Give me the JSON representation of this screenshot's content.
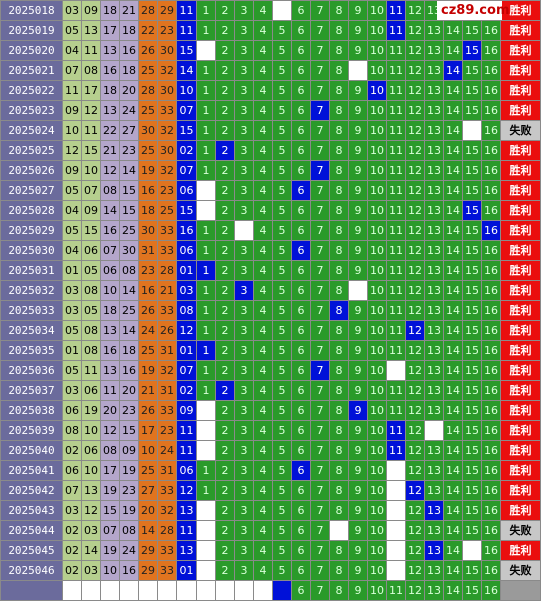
{
  "logo": {
    "text": "cz89.com"
  },
  "rows": [
    {
      "issue": "2025018",
      "nums": [
        "03",
        "09",
        "18",
        "21",
        "28",
        "29"
      ],
      "blue": "11",
      "res": "win"
    },
    {
      "issue": "2025019",
      "nums": [
        "05",
        "13",
        "17",
        "18",
        "22",
        "23"
      ],
      "blue": "11",
      "res": "win"
    },
    {
      "issue": "2025020",
      "nums": [
        "04",
        "11",
        "13",
        "16",
        "26",
        "30"
      ],
      "blue": "15",
      "res": "win"
    },
    {
      "issue": "2025021",
      "nums": [
        "07",
        "08",
        "16",
        "18",
        "25",
        "32"
      ],
      "blue": "14",
      "res": "win"
    },
    {
      "issue": "2025022",
      "nums": [
        "11",
        "17",
        "18",
        "20",
        "28",
        "30"
      ],
      "blue": "10",
      "res": "win"
    },
    {
      "issue": "2025023",
      "nums": [
        "09",
        "12",
        "13",
        "24",
        "25",
        "33"
      ],
      "blue": "07",
      "res": "win"
    },
    {
      "issue": "2025024",
      "nums": [
        "10",
        "11",
        "22",
        "27",
        "30",
        "32"
      ],
      "blue": "15",
      "res": "lose"
    },
    {
      "issue": "2025025",
      "nums": [
        "12",
        "15",
        "21",
        "23",
        "25",
        "30"
      ],
      "blue": "02",
      "res": "win"
    },
    {
      "issue": "2025026",
      "nums": [
        "09",
        "10",
        "12",
        "14",
        "19",
        "32"
      ],
      "blue": "07",
      "res": "win"
    },
    {
      "issue": "2025027",
      "nums": [
        "05",
        "07",
        "08",
        "15",
        "16",
        "23"
      ],
      "blue": "06",
      "res": "win"
    },
    {
      "issue": "2025028",
      "nums": [
        "04",
        "09",
        "14",
        "15",
        "18",
        "25"
      ],
      "blue": "15",
      "res": "win"
    },
    {
      "issue": "2025029",
      "nums": [
        "05",
        "15",
        "16",
        "25",
        "30",
        "33"
      ],
      "blue": "16",
      "res": "win"
    },
    {
      "issue": "2025030",
      "nums": [
        "04",
        "06",
        "07",
        "30",
        "31",
        "33"
      ],
      "blue": "06",
      "res": "win"
    },
    {
      "issue": "2025031",
      "nums": [
        "01",
        "05",
        "06",
        "08",
        "23",
        "28"
      ],
      "blue": "01",
      "res": "win"
    },
    {
      "issue": "2025032",
      "nums": [
        "03",
        "08",
        "10",
        "14",
        "16",
        "21"
      ],
      "blue": "03",
      "res": "win"
    },
    {
      "issue": "2025033",
      "nums": [
        "03",
        "05",
        "18",
        "25",
        "26",
        "33"
      ],
      "blue": "08",
      "res": "win"
    },
    {
      "issue": "2025034",
      "nums": [
        "05",
        "08",
        "13",
        "14",
        "24",
        "26"
      ],
      "blue": "12",
      "res": "win"
    },
    {
      "issue": "2025035",
      "nums": [
        "01",
        "08",
        "16",
        "18",
        "25",
        "31"
      ],
      "blue": "01",
      "res": "win"
    },
    {
      "issue": "2025036",
      "nums": [
        "05",
        "11",
        "13",
        "16",
        "19",
        "32"
      ],
      "blue": "07",
      "res": "win"
    },
    {
      "issue": "2025037",
      "nums": [
        "03",
        "06",
        "11",
        "20",
        "21",
        "31"
      ],
      "blue": "02",
      "res": "win"
    },
    {
      "issue": "2025038",
      "nums": [
        "06",
        "19",
        "20",
        "23",
        "26",
        "33"
      ],
      "blue": "09",
      "res": "win"
    },
    {
      "issue": "2025039",
      "nums": [
        "08",
        "10",
        "12",
        "15",
        "17",
        "23"
      ],
      "blue": "11",
      "res": "win"
    },
    {
      "issue": "2025040",
      "nums": [
        "02",
        "06",
        "08",
        "09",
        "10",
        "24"
      ],
      "blue": "11",
      "res": "win"
    },
    {
      "issue": "2025041",
      "nums": [
        "06",
        "10",
        "17",
        "19",
        "25",
        "31"
      ],
      "blue": "06",
      "res": "win"
    },
    {
      "issue": "2025042",
      "nums": [
        "07",
        "13",
        "19",
        "23",
        "27",
        "33"
      ],
      "blue": "12",
      "res": "win"
    },
    {
      "issue": "2025043",
      "nums": [
        "03",
        "12",
        "15",
        "19",
        "20",
        "32"
      ],
      "blue": "13",
      "res": "win"
    },
    {
      "issue": "2025044",
      "nums": [
        "02",
        "03",
        "07",
        "08",
        "14",
        "28"
      ],
      "blue": "11",
      "res": "lose"
    },
    {
      "issue": "2025045",
      "nums": [
        "02",
        "14",
        "19",
        "24",
        "29",
        "33"
      ],
      "blue": "13",
      "res": "win"
    },
    {
      "issue": "2025046",
      "nums": [
        "02",
        "03",
        "10",
        "16",
        "29",
        "33"
      ],
      "blue": "01",
      "res": "lose"
    }
  ],
  "grid": [
    "GGGGWGGGGGBGGGGG",
    "GGGGGGGGGGBGGGGG",
    "WGGGGGGGGGGGGGBG",
    "GGGGGGGGWGGGGBGG",
    "GGGGGGGGGBGGGGGG",
    "GGGGGGBGGGGGGGGG",
    "GGGGGGGGGGGGGGWG",
    "GBGGGGGGGGGGGGGG",
    "GGGGGGBGGGGGGGGG",
    "WGGGGBGGGGGGGGGG",
    "WGGGGGGGGGGGGGBG",
    "GGWGGGGGGGGGGGGB",
    "GGGGGBGGGGGGGGGG",
    "BGGGGGGGGGGGGGGG",
    "GGBGGGGGWGGGGGGG",
    "GGGGGGGBGGGGGGGG",
    "GGGGGGGGGGGBGGGG",
    "BGGGGGGGGGGGGGGG",
    "GGGGGGBGGGWGGGGG",
    "GBGGGGGGGGGGGGGG",
    "WGGGGGGGBGGGGGGG",
    "WGGGGGGGGGBGWGGG",
    "WGGGGGGGGGBGGGGG",
    "GGGGGBGGGGWGGGGG",
    "GGGGGGGGGGWBGGGG",
    "WGGGGGGGGGWGBGGG",
    "WGGGGGGWGGWGGGGG",
    "WGGGGGGGGGWGBGWG",
    "WGGGGGGGGGWGGGGG"
  ],
  "grid_values": [
    "1",
    "2",
    "3",
    "4",
    "5",
    "6",
    "7",
    "8",
    "9",
    "10",
    "11",
    "12",
    "13",
    "14",
    "15",
    "16"
  ],
  "bottom_grid": "WWWWBGGGGGGGGGGG",
  "labels": {
    "win": "胜利",
    "lose": "失败"
  }
}
